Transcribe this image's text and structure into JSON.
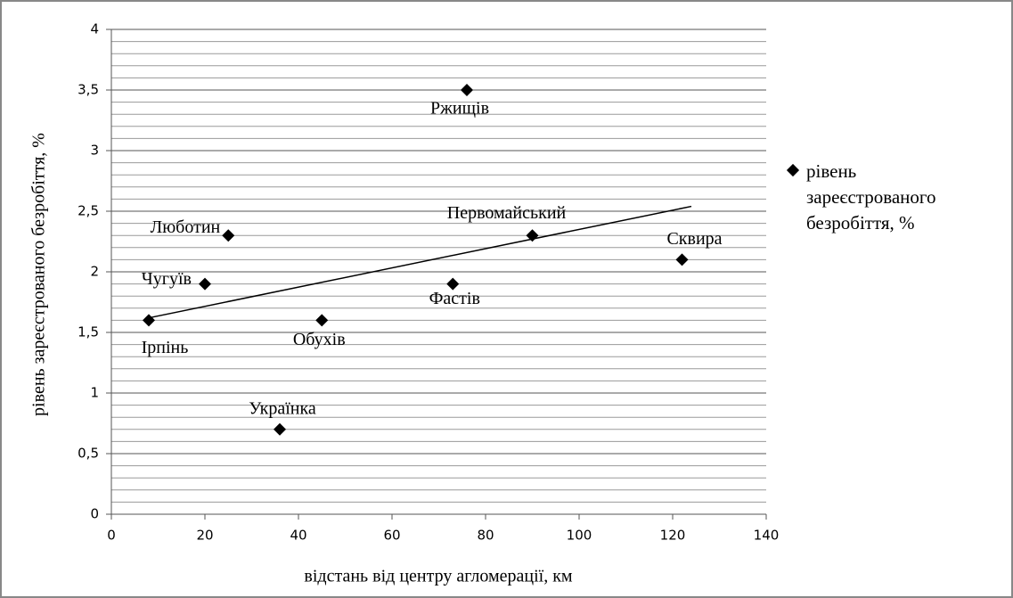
{
  "chart_data": {
    "type": "scatter",
    "x_label": "відстань  від центру  агломерації,  км",
    "y_label": "рівень зареєстрованого безробіття, %",
    "x": [
      8,
      20,
      25,
      36,
      45,
      73,
      76,
      90,
      122
    ],
    "point_labels": [
      "Ірпінь",
      "Чугуїв",
      "Люботин",
      "Українка",
      "Обухів",
      "Фастів",
      "Ржищів",
      "Первомайський",
      "Сквира"
    ],
    "series": [
      {
        "name": "рівень зареєстрованого безробіття, %",
        "color": "#000000",
        "values": [
          1.6,
          1.9,
          2.3,
          0.7,
          1.6,
          1.9,
          3.5,
          2.3,
          2.1
        ]
      }
    ],
    "trendline": {
      "x": [
        8,
        124
      ],
      "y": [
        1.62,
        2.54
      ]
    },
    "xlim": [
      0,
      140
    ],
    "xticks": [
      0,
      20,
      40,
      60,
      80,
      100,
      120,
      140
    ],
    "ylim": [
      0,
      4
    ],
    "yticks": [
      0,
      {
        "value": 0.5,
        "label": "0,5"
      },
      1,
      {
        "value": 1.5,
        "label": "1,5"
      },
      2,
      {
        "value": 2.5,
        "label": "2,5"
      },
      3,
      {
        "value": 3.5,
        "label": "3,5"
      },
      4
    ],
    "y_minor_step": 0.1,
    "grid": true,
    "legend": "right"
  }
}
